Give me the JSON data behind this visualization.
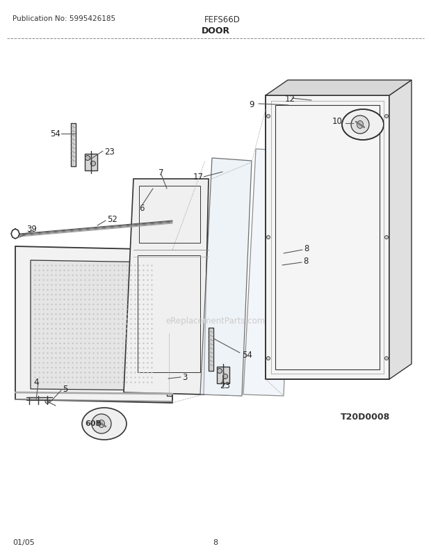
{
  "title_pub": "Publication No: 5995426185",
  "title_model": "FEFS66D",
  "title_section": "DOOR",
  "footer_left": "01/05",
  "footer_center": "8",
  "diagram_id": "T20D0008",
  "watermark": "eReplacementParts.com",
  "bg_color": "#ffffff",
  "line_color": "#333333"
}
